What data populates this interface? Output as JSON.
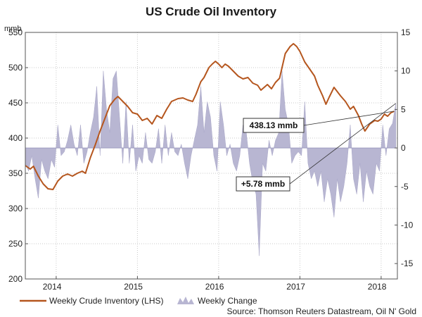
{
  "chart_data": {
    "title": "US Crude Oil Inventory",
    "type": "line+bar",
    "left_axis": {
      "unit": "mmb",
      "range": [
        200,
        550
      ],
      "ticks": [
        200,
        250,
        300,
        350,
        400,
        450,
        500,
        550
      ]
    },
    "right_axis": {
      "range": [
        -17,
        15
      ],
      "ticks": [
        -15,
        -10,
        -5,
        0,
        5,
        10,
        15
      ]
    },
    "x_range": [
      2013.62,
      2018.2
    ],
    "x_ticks": [
      {
        "label": "2014",
        "x": 2014.0
      },
      {
        "label": "2015",
        "x": 2015.0
      },
      {
        "label": "2016",
        "x": 2016.0
      },
      {
        "label": "2017",
        "x": 2017.0
      },
      {
        "label": "2018",
        "x": 2018.0
      }
    ],
    "inventory_series": {
      "name": "Weekly Crude Inventory (LHS)",
      "color": "#b5561e",
      "axis": "left",
      "points": [
        [
          2013.62,
          361
        ],
        [
          2013.68,
          356
        ],
        [
          2013.72,
          360
        ],
        [
          2013.78,
          346
        ],
        [
          2013.84,
          335
        ],
        [
          2013.9,
          328
        ],
        [
          2013.96,
          327
        ],
        [
          2014.02,
          339
        ],
        [
          2014.08,
          346
        ],
        [
          2014.14,
          349
        ],
        [
          2014.2,
          346
        ],
        [
          2014.26,
          350
        ],
        [
          2014.32,
          353
        ],
        [
          2014.36,
          350
        ],
        [
          2014.42,
          372
        ],
        [
          2014.48,
          390
        ],
        [
          2014.54,
          410
        ],
        [
          2014.6,
          428
        ],
        [
          2014.66,
          446
        ],
        [
          2014.72,
          455
        ],
        [
          2014.76,
          459
        ],
        [
          2014.82,
          452
        ],
        [
          2014.88,
          445
        ],
        [
          2014.94,
          436
        ],
        [
          2015.0,
          434
        ],
        [
          2015.06,
          425
        ],
        [
          2015.12,
          428
        ],
        [
          2015.18,
          420
        ],
        [
          2015.24,
          432
        ],
        [
          2015.3,
          428
        ],
        [
          2015.36,
          441
        ],
        [
          2015.42,
          452
        ],
        [
          2015.5,
          456
        ],
        [
          2015.56,
          457
        ],
        [
          2015.62,
          454
        ],
        [
          2015.68,
          452
        ],
        [
          2015.72,
          462
        ],
        [
          2015.78,
          480
        ],
        [
          2015.82,
          486
        ],
        [
          2015.88,
          500
        ],
        [
          2015.92,
          505
        ],
        [
          2015.96,
          509
        ],
        [
          2016.0,
          505
        ],
        [
          2016.04,
          500
        ],
        [
          2016.08,
          505
        ],
        [
          2016.12,
          502
        ],
        [
          2016.18,
          495
        ],
        [
          2016.24,
          488
        ],
        [
          2016.3,
          484
        ],
        [
          2016.36,
          486
        ],
        [
          2016.42,
          478
        ],
        [
          2016.48,
          475
        ],
        [
          2016.52,
          468
        ],
        [
          2016.56,
          472
        ],
        [
          2016.6,
          476
        ],
        [
          2016.65,
          470
        ],
        [
          2016.7,
          479
        ],
        [
          2016.75,
          485
        ],
        [
          2016.82,
          520
        ],
        [
          2016.88,
          530
        ],
        [
          2016.92,
          534
        ],
        [
          2016.96,
          530
        ],
        [
          2017.0,
          523
        ],
        [
          2017.06,
          508
        ],
        [
          2017.12,
          498
        ],
        [
          2017.18,
          488
        ],
        [
          2017.22,
          475
        ],
        [
          2017.28,
          460
        ],
        [
          2017.32,
          448
        ],
        [
          2017.36,
          458
        ],
        [
          2017.42,
          472
        ],
        [
          2017.5,
          460
        ],
        [
          2017.56,
          452
        ],
        [
          2017.62,
          441
        ],
        [
          2017.66,
          445
        ],
        [
          2017.72,
          432
        ],
        [
          2017.76,
          420
        ],
        [
          2017.8,
          410
        ],
        [
          2017.86,
          420
        ],
        [
          2017.92,
          425
        ],
        [
          2017.96,
          424
        ],
        [
          2018.0,
          427
        ],
        [
          2018.04,
          434
        ],
        [
          2018.08,
          431
        ],
        [
          2018.12,
          436
        ],
        [
          2018.16,
          438
        ]
      ]
    },
    "change_series": {
      "name": "Weekly Change",
      "color": "#b8b6d2",
      "axis": "right",
      "points": [
        [
          2013.62,
          -2
        ],
        [
          2013.66,
          -3
        ],
        [
          2013.7,
          -1
        ],
        [
          2013.74,
          -4
        ],
        [
          2013.78,
          -6.5
        ],
        [
          2013.82,
          -1.5
        ],
        [
          2013.86,
          -3
        ],
        [
          2013.9,
          -4
        ],
        [
          2013.94,
          -1.5
        ],
        [
          2013.98,
          -2.5
        ],
        [
          2014.02,
          3
        ],
        [
          2014.06,
          -1
        ],
        [
          2014.1,
          -0.5
        ],
        [
          2014.14,
          1
        ],
        [
          2014.18,
          3
        ],
        [
          2014.22,
          0.5
        ],
        [
          2014.26,
          -1
        ],
        [
          2014.3,
          3
        ],
        [
          2014.34,
          -2
        ],
        [
          2014.38,
          -0.5
        ],
        [
          2014.42,
          2
        ],
        [
          2014.46,
          4
        ],
        [
          2014.5,
          8
        ],
        [
          2014.54,
          -1
        ],
        [
          2014.58,
          10
        ],
        [
          2014.62,
          5
        ],
        [
          2014.66,
          2
        ],
        [
          2014.7,
          9
        ],
        [
          2014.74,
          10
        ],
        [
          2014.78,
          4
        ],
        [
          2014.82,
          -2
        ],
        [
          2014.86,
          6
        ],
        [
          2014.9,
          -2
        ],
        [
          2014.94,
          3
        ],
        [
          2014.98,
          -3
        ],
        [
          2015.02,
          -1
        ],
        [
          2015.06,
          -2
        ],
        [
          2015.1,
          2
        ],
        [
          2015.14,
          -1.5
        ],
        [
          2015.18,
          -2
        ],
        [
          2015.22,
          -0.5
        ],
        [
          2015.26,
          2.5
        ],
        [
          2015.3,
          -2
        ],
        [
          2015.34,
          3
        ],
        [
          2015.38,
          -1
        ],
        [
          2015.42,
          2
        ],
        [
          2015.46,
          -0.5
        ],
        [
          2015.5,
          -1
        ],
        [
          2015.54,
          0.5
        ],
        [
          2015.58,
          -2
        ],
        [
          2015.62,
          -4
        ],
        [
          2015.66,
          -1
        ],
        [
          2015.7,
          1
        ],
        [
          2015.74,
          3
        ],
        [
          2015.78,
          8
        ],
        [
          2015.82,
          2
        ],
        [
          2015.86,
          6
        ],
        [
          2015.9,
          4
        ],
        [
          2015.94,
          -1
        ],
        [
          2015.98,
          -3
        ],
        [
          2016.02,
          6
        ],
        [
          2016.06,
          3
        ],
        [
          2016.1,
          -1
        ],
        [
          2016.14,
          0.5
        ],
        [
          2016.18,
          -2
        ],
        [
          2016.22,
          -3
        ],
        [
          2016.26,
          -1
        ],
        [
          2016.3,
          3
        ],
        [
          2016.34,
          2
        ],
        [
          2016.38,
          -2
        ],
        [
          2016.42,
          -4.5
        ],
        [
          2016.46,
          -6
        ],
        [
          2016.5,
          -14
        ],
        [
          2016.54,
          -2
        ],
        [
          2016.58,
          -3
        ],
        [
          2016.62,
          1
        ],
        [
          2016.66,
          -1
        ],
        [
          2016.7,
          1
        ],
        [
          2016.74,
          2
        ],
        [
          2016.78,
          10
        ],
        [
          2016.82,
          5
        ],
        [
          2016.86,
          3
        ],
        [
          2016.9,
          -2
        ],
        [
          2016.94,
          -1
        ],
        [
          2016.98,
          -0.5
        ],
        [
          2017.02,
          -1
        ],
        [
          2017.06,
          6
        ],
        [
          2017.1,
          -2
        ],
        [
          2017.14,
          -4
        ],
        [
          2017.18,
          -3
        ],
        [
          2017.22,
          -5
        ],
        [
          2017.26,
          -3
        ],
        [
          2017.3,
          -7
        ],
        [
          2017.34,
          -4
        ],
        [
          2017.38,
          -6
        ],
        [
          2017.42,
          -9
        ],
        [
          2017.46,
          -4
        ],
        [
          2017.5,
          -7
        ],
        [
          2017.54,
          -5
        ],
        [
          2017.58,
          -2
        ],
        [
          2017.62,
          3
        ],
        [
          2017.66,
          -4
        ],
        [
          2017.7,
          -6
        ],
        [
          2017.74,
          -2
        ],
        [
          2017.78,
          -7
        ],
        [
          2017.82,
          -3
        ],
        [
          2017.86,
          -5
        ],
        [
          2017.9,
          -6
        ],
        [
          2017.94,
          -2
        ],
        [
          2017.98,
          -3
        ],
        [
          2018.02,
          3
        ],
        [
          2018.06,
          -1
        ],
        [
          2018.1,
          2.5
        ],
        [
          2018.14,
          3.2
        ],
        [
          2018.18,
          5.78
        ]
      ]
    },
    "annotations": [
      {
        "text": "438.13 mmb",
        "target_x": 2018.16,
        "target_y": 438.13,
        "axis": "left"
      },
      {
        "text": "+5.78 mmb",
        "target_x": 2018.18,
        "target_y": 5.78,
        "axis": "right"
      }
    ],
    "legend": [
      {
        "label": "Weekly Crude Inventory (LHS)",
        "kind": "line"
      },
      {
        "label": "Weekly Change",
        "kind": "area"
      }
    ],
    "source": "Source: Thomson Reuters Datastream, Oil N' Gold"
  }
}
